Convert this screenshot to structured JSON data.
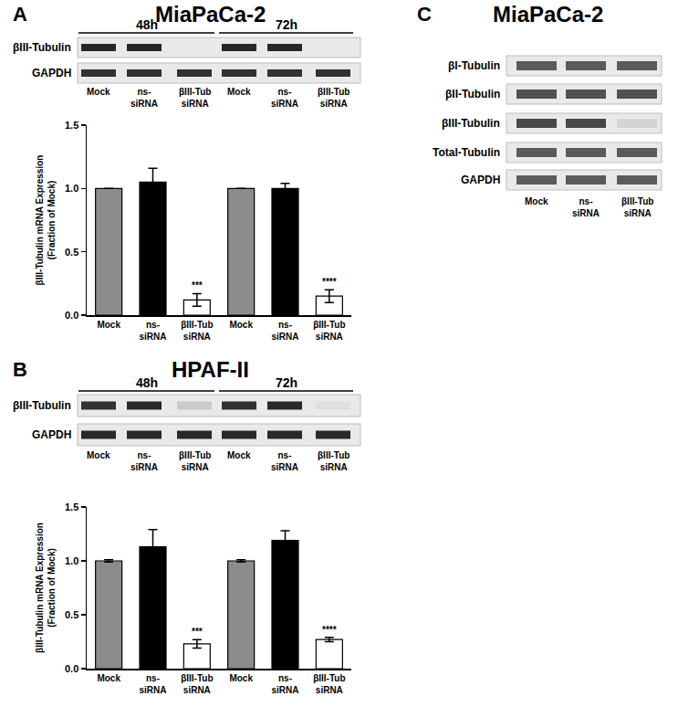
{
  "chart_data": [
    {
      "type": "bar",
      "panel": "A",
      "title": "MiaPaCa-2",
      "categories": [
        "Mock",
        "ns-\nsiRNA",
        "βIII-Tub\nsiRNA",
        "Mock",
        "ns-\nsiRNA",
        "βIII-Tub\nsiRNA"
      ],
      "values": [
        1.0,
        1.05,
        0.12,
        1.0,
        1.0,
        0.15
      ],
      "errors": [
        0,
        0.11,
        0.05,
        0,
        0.04,
        0.05
      ],
      "colors": [
        "#8c8c8c",
        "#000000",
        "#ffffff",
        "#8c8c8c",
        "#000000",
        "#ffffff"
      ],
      "ylabel": "βIII-Tubulin mRNA Expression\n(Fraction of Mock)",
      "ylim": [
        0,
        1.5
      ],
      "yticks": [
        {
          "value": 0,
          "label": "0.0"
        },
        0.5,
        {
          "value": 1,
          "label": "1.0"
        },
        1.5
      ],
      "grid": false,
      "annotations": [
        {
          "index": 2,
          "text": "***"
        },
        {
          "index": 5,
          "text": "****"
        }
      ]
    },
    {
      "type": "bar",
      "panel": "B",
      "title": "HPAF-II",
      "categories": [
        "Mock",
        "ns-\nsiRNA",
        "βIII-Tub\nsiRNA",
        "Mock",
        "ns-\nsiRNA",
        "βIII-Tub\nsiRNA"
      ],
      "values": [
        1.0,
        1.13,
        0.23,
        1.0,
        1.19,
        0.27
      ],
      "errors": [
        0.01,
        0.16,
        0.04,
        0.01,
        0.09,
        0.02
      ],
      "colors": [
        "#8c8c8c",
        "#000000",
        "#ffffff",
        "#8c8c8c",
        "#000000",
        "#ffffff"
      ],
      "ylabel": "βIII-Tubulin mRNA Expression\n(Fraction of Mock)",
      "ylim": [
        0,
        1.5
      ],
      "yticks": [
        {
          "value": 0,
          "label": "0.0"
        },
        0.5,
        {
          "value": 1,
          "label": "1.0"
        },
        1.5
      ],
      "grid": false,
      "annotations": [
        {
          "index": 2,
          "text": "***"
        },
        {
          "index": 5,
          "text": "****"
        }
      ]
    }
  ],
  "blots": [
    {
      "panel": "A",
      "groups": [
        {
          "label": "48h",
          "lanes": [
            0,
            1,
            2
          ]
        },
        {
          "label": "72h",
          "lanes": [
            3,
            4,
            5
          ]
        }
      ],
      "lanes": [
        "Mock",
        "ns-\nsiRNA",
        "βIII-Tub\nsiRNA",
        "Mock",
        "ns-\nsiRNA",
        "βIII-Tub\nsiRNA"
      ],
      "rows": [
        {
          "label": "βIII-Tubulin",
          "bands": [
            0.95,
            0.95,
            0,
            0.95,
            0.95,
            0
          ]
        },
        {
          "label": "GAPDH",
          "bands": [
            0.9,
            0.9,
            0.9,
            0.9,
            0.9,
            0.9
          ]
        }
      ]
    },
    {
      "panel": "B",
      "groups": [
        {
          "label": "48h",
          "lanes": [
            0,
            1,
            2
          ]
        },
        {
          "label": "72h",
          "lanes": [
            3,
            4,
            5
          ]
        }
      ],
      "lanes": [
        "Mock",
        "ns-\nsiRNA",
        "βIII-Tub\nsiRNA",
        "Mock",
        "ns-\nsiRNA",
        "βIII-Tub\nsiRNA"
      ],
      "rows": [
        {
          "label": "βIII-Tubulin",
          "bands": [
            0.9,
            0.95,
            0.15,
            0.9,
            0.95,
            0.05
          ]
        },
        {
          "label": "GAPDH",
          "bands": [
            0.95,
            0.95,
            0.95,
            0.95,
            0.95,
            0.95
          ]
        }
      ]
    },
    {
      "panel": "C",
      "title": "MiaPaCa-2",
      "groups": [],
      "lanes": [
        "Mock",
        "ns-\nsiRNA",
        "βIII-Tub\nsiRNA"
      ],
      "rows": [
        {
          "label": "βI-Tubulin",
          "bands": [
            0.7,
            0.7,
            0.7
          ]
        },
        {
          "label": "βII-Tubulin",
          "bands": [
            0.75,
            0.75,
            0.75
          ]
        },
        {
          "label": "βIII-Tubulin",
          "bands": [
            0.8,
            0.8,
            0.1
          ]
        },
        {
          "label": "Total-Tubulin",
          "bands": [
            0.7,
            0.7,
            0.7
          ]
        },
        {
          "label": "GAPDH",
          "bands": [
            0.7,
            0.7,
            0.7
          ]
        }
      ]
    }
  ]
}
